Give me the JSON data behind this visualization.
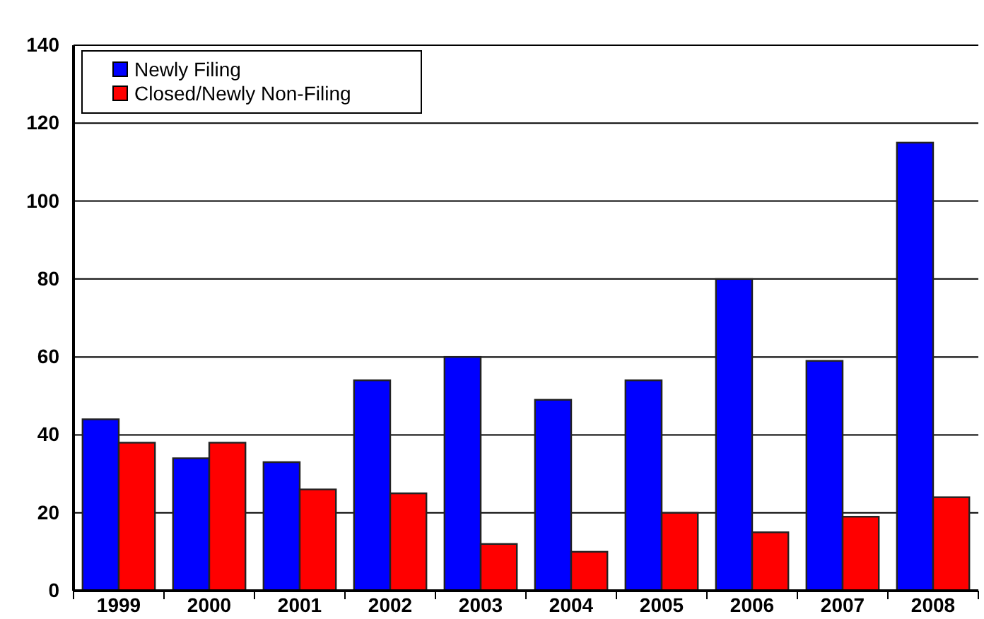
{
  "chart_data": {
    "type": "bar",
    "categories": [
      "1999",
      "2000",
      "2001",
      "2002",
      "2003",
      "2004",
      "2005",
      "2006",
      "2007",
      "2008"
    ],
    "series": [
      {
        "name": "Newly Filing",
        "color": "#0000ff",
        "values": [
          44,
          34,
          33,
          54,
          60,
          49,
          54,
          80,
          59,
          115
        ]
      },
      {
        "name": "Closed/Newly Non-Filing",
        "color": "#ff0000",
        "values": [
          38,
          38,
          26,
          25,
          12,
          10,
          20,
          15,
          19,
          24
        ]
      }
    ],
    "ylim": [
      0,
      140
    ],
    "yticks": [
      0,
      20,
      40,
      60,
      80,
      100,
      120,
      140
    ],
    "grid": "y",
    "legend": "top left"
  }
}
